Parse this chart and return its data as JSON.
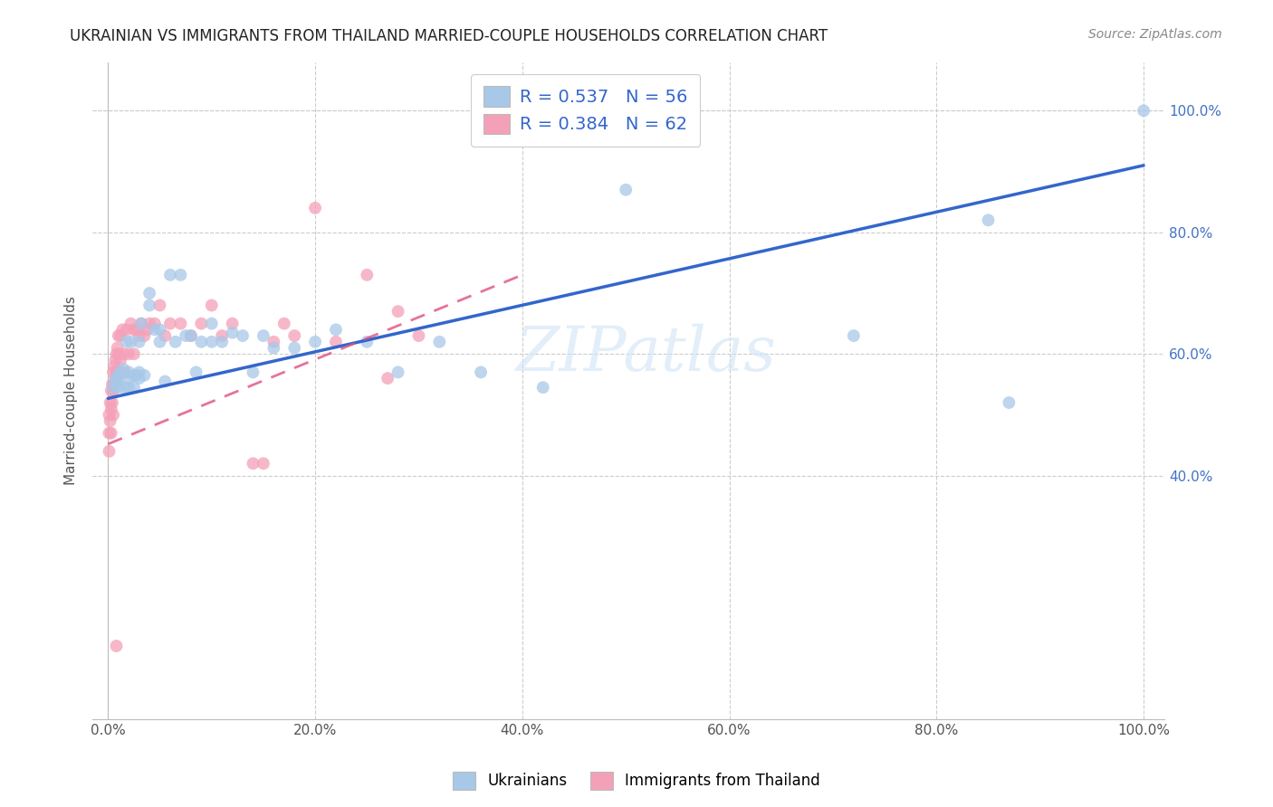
{
  "title": "UKRAINIAN VS IMMIGRANTS FROM THAILAND MARRIED-COUPLE HOUSEHOLDS CORRELATION CHART",
  "source": "Source: ZipAtlas.com",
  "ylabel": "Married-couple Households",
  "watermark": "ZIPatlas",
  "legend1_label": "R = 0.537   N = 56",
  "legend2_label": "R = 0.384   N = 62",
  "blue_color": "#a8c8e8",
  "pink_color": "#f4a0b8",
  "blue_line_color": "#3366cc",
  "pink_line_color": "#e05080",
  "blue_scatter_x": [
    0.005,
    0.007,
    0.008,
    0.01,
    0.01,
    0.01,
    0.012,
    0.015,
    0.015,
    0.018,
    0.02,
    0.02,
    0.02,
    0.022,
    0.025,
    0.025,
    0.028,
    0.03,
    0.03,
    0.03,
    0.032,
    0.035,
    0.04,
    0.04,
    0.045,
    0.05,
    0.05,
    0.055,
    0.06,
    0.065,
    0.07,
    0.075,
    0.08,
    0.085,
    0.09,
    0.1,
    0.1,
    0.11,
    0.12,
    0.13,
    0.14,
    0.15,
    0.16,
    0.18,
    0.2,
    0.22,
    0.25,
    0.28,
    0.32,
    0.36,
    0.42,
    0.5,
    0.72,
    0.85,
    0.87,
    1.0
  ],
  "blue_scatter_y": [
    0.545,
    0.555,
    0.56,
    0.545,
    0.555,
    0.565,
    0.57,
    0.545,
    0.575,
    0.62,
    0.545,
    0.56,
    0.57,
    0.62,
    0.545,
    0.565,
    0.565,
    0.56,
    0.57,
    0.62,
    0.65,
    0.565,
    0.68,
    0.7,
    0.64,
    0.62,
    0.64,
    0.555,
    0.73,
    0.62,
    0.73,
    0.63,
    0.63,
    0.57,
    0.62,
    0.62,
    0.65,
    0.62,
    0.635,
    0.63,
    0.57,
    0.63,
    0.61,
    0.61,
    0.62,
    0.64,
    0.62,
    0.57,
    0.62,
    0.57,
    0.545,
    0.87,
    0.63,
    0.82,
    0.52,
    1.0
  ],
  "pink_scatter_x": [
    0.001,
    0.001,
    0.001,
    0.002,
    0.002,
    0.003,
    0.003,
    0.003,
    0.004,
    0.004,
    0.005,
    0.005,
    0.005,
    0.006,
    0.006,
    0.007,
    0.007,
    0.008,
    0.008,
    0.009,
    0.009,
    0.01,
    0.01,
    0.01,
    0.012,
    0.012,
    0.014,
    0.015,
    0.016,
    0.018,
    0.02,
    0.022,
    0.025,
    0.025,
    0.028,
    0.03,
    0.032,
    0.035,
    0.038,
    0.04,
    0.045,
    0.05,
    0.055,
    0.06,
    0.07,
    0.08,
    0.09,
    0.1,
    0.11,
    0.12,
    0.14,
    0.15,
    0.16,
    0.17,
    0.18,
    0.2,
    0.22,
    0.25,
    0.27,
    0.28,
    0.3,
    0.008
  ],
  "pink_scatter_y": [
    0.5,
    0.47,
    0.44,
    0.52,
    0.49,
    0.54,
    0.51,
    0.47,
    0.55,
    0.52,
    0.57,
    0.54,
    0.5,
    0.58,
    0.55,
    0.59,
    0.56,
    0.6,
    0.57,
    0.61,
    0.57,
    0.63,
    0.6,
    0.57,
    0.63,
    0.59,
    0.64,
    0.6,
    0.57,
    0.64,
    0.6,
    0.65,
    0.64,
    0.6,
    0.64,
    0.63,
    0.65,
    0.63,
    0.64,
    0.65,
    0.65,
    0.68,
    0.63,
    0.65,
    0.65,
    0.63,
    0.65,
    0.68,
    0.63,
    0.65,
    0.42,
    0.42,
    0.62,
    0.65,
    0.63,
    0.84,
    0.62,
    0.73,
    0.56,
    0.67,
    0.63,
    0.12
  ],
  "blue_line_x": [
    0.0,
    1.0
  ],
  "blue_line_y": [
    0.527,
    0.91
  ],
  "pink_line_x": [
    0.0,
    0.4
  ],
  "pink_line_y": [
    0.452,
    0.73
  ],
  "xlim": [
    -0.015,
    1.02
  ],
  "ylim": [
    0.0,
    1.08
  ],
  "xtick_vals": [
    0.0,
    0.2,
    0.4,
    0.6,
    0.8,
    1.0
  ],
  "xtick_labels": [
    "0.0%",
    "20.0%",
    "40.0%",
    "60.0%",
    "80.0%",
    "100.0%"
  ],
  "ytick_vals": [
    0.4,
    0.6,
    0.8,
    1.0
  ],
  "ytick_labels": [
    "40.0%",
    "60.0%",
    "80.0%",
    "100.0%"
  ]
}
